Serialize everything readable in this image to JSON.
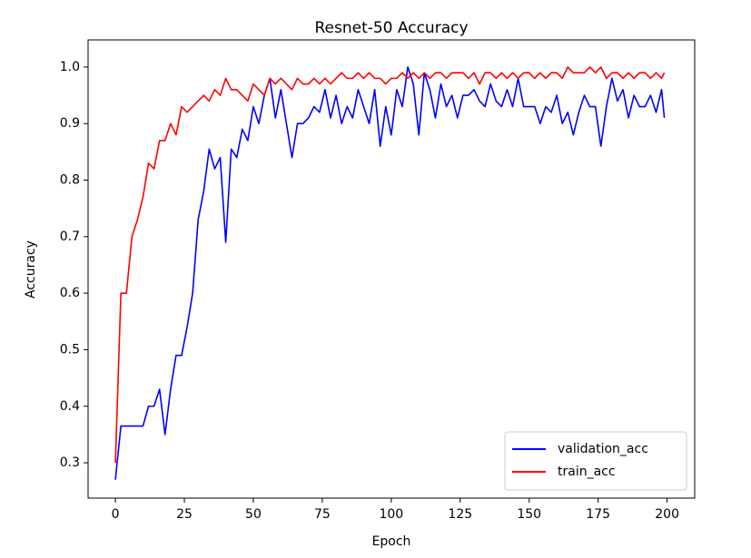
{
  "chart_data": {
    "type": "line",
    "title": "Resnet-50 Accuracy",
    "x_label": "Epoch",
    "y_label": "Accuracy",
    "x": [
      0,
      2,
      4,
      6,
      8,
      10,
      12,
      14,
      16,
      18,
      20,
      22,
      24,
      26,
      28,
      30,
      32,
      34,
      36,
      38,
      40,
      42,
      44,
      46,
      48,
      50,
      52,
      54,
      56,
      58,
      60,
      62,
      64,
      66,
      68,
      70,
      72,
      74,
      76,
      78,
      80,
      82,
      84,
      86,
      88,
      90,
      92,
      94,
      96,
      98,
      100,
      102,
      104,
      106,
      108,
      110,
      112,
      114,
      116,
      118,
      120,
      122,
      124,
      126,
      128,
      130,
      132,
      134,
      136,
      138,
      140,
      142,
      144,
      146,
      148,
      150,
      152,
      154,
      156,
      158,
      160,
      162,
      164,
      166,
      168,
      170,
      172,
      174,
      176,
      178,
      180,
      182,
      184,
      186,
      188,
      190,
      192,
      194,
      196,
      198,
      199
    ],
    "series": [
      {
        "name": "validation_acc",
        "color": "#0000ff",
        "values": [
          0.27,
          0.365,
          0.365,
          0.365,
          0.365,
          0.365,
          0.4,
          0.4,
          0.43,
          0.35,
          0.43,
          0.49,
          0.49,
          0.54,
          0.6,
          0.73,
          0.78,
          0.855,
          0.82,
          0.84,
          0.69,
          0.855,
          0.84,
          0.89,
          0.87,
          0.93,
          0.9,
          0.95,
          0.98,
          0.91,
          0.96,
          0.9,
          0.84,
          0.9,
          0.9,
          0.91,
          0.93,
          0.92,
          0.96,
          0.91,
          0.95,
          0.9,
          0.93,
          0.91,
          0.96,
          0.93,
          0.9,
          0.96,
          0.86,
          0.93,
          0.88,
          0.96,
          0.93,
          1.0,
          0.97,
          0.88,
          0.99,
          0.96,
          0.91,
          0.97,
          0.93,
          0.95,
          0.91,
          0.95,
          0.95,
          0.96,
          0.94,
          0.93,
          0.97,
          0.94,
          0.93,
          0.96,
          0.93,
          0.98,
          0.93,
          0.93,
          0.93,
          0.9,
          0.93,
          0.92,
          0.95,
          0.9,
          0.92,
          0.88,
          0.92,
          0.95,
          0.93,
          0.93,
          0.86,
          0.93,
          0.98,
          0.94,
          0.96,
          0.91,
          0.95,
          0.93,
          0.93,
          0.95,
          0.92,
          0.96,
          0.91
        ]
      },
      {
        "name": "train_acc",
        "color": "#ff0000",
        "values": [
          0.3,
          0.6,
          0.6,
          0.7,
          0.73,
          0.77,
          0.83,
          0.82,
          0.87,
          0.87,
          0.9,
          0.88,
          0.93,
          0.92,
          0.93,
          0.94,
          0.95,
          0.94,
          0.96,
          0.95,
          0.98,
          0.96,
          0.96,
          0.95,
          0.94,
          0.97,
          0.96,
          0.95,
          0.98,
          0.97,
          0.98,
          0.97,
          0.96,
          0.98,
          0.97,
          0.97,
          0.98,
          0.97,
          0.98,
          0.97,
          0.98,
          0.99,
          0.98,
          0.98,
          0.99,
          0.98,
          0.99,
          0.98,
          0.98,
          0.97,
          0.98,
          0.98,
          0.99,
          0.98,
          0.99,
          0.98,
          0.99,
          0.98,
          0.99,
          0.99,
          0.98,
          0.99,
          0.99,
          0.99,
          0.98,
          0.99,
          0.97,
          0.99,
          0.99,
          0.98,
          0.99,
          0.98,
          0.99,
          0.98,
          0.99,
          0.99,
          0.98,
          0.99,
          0.98,
          0.99,
          0.99,
          0.98,
          1.0,
          0.99,
          0.99,
          0.99,
          1.0,
          0.99,
          1.0,
          0.98,
          0.99,
          0.99,
          0.98,
          0.99,
          0.98,
          0.99,
          0.99,
          0.98,
          0.99,
          0.98,
          0.99
        ]
      }
    ],
    "xlim": [
      -9.9,
      210
    ],
    "ylim": [
      0.2375,
      1.048
    ],
    "xticks": [
      0,
      25,
      50,
      75,
      100,
      125,
      150,
      175,
      200
    ],
    "yticks": [
      0.3,
      0.4,
      0.5,
      0.6,
      0.7,
      0.8,
      0.9,
      {
        "value": 1,
        "label": "1.0"
      }
    ],
    "legend": "lower right",
    "grid": false
  }
}
